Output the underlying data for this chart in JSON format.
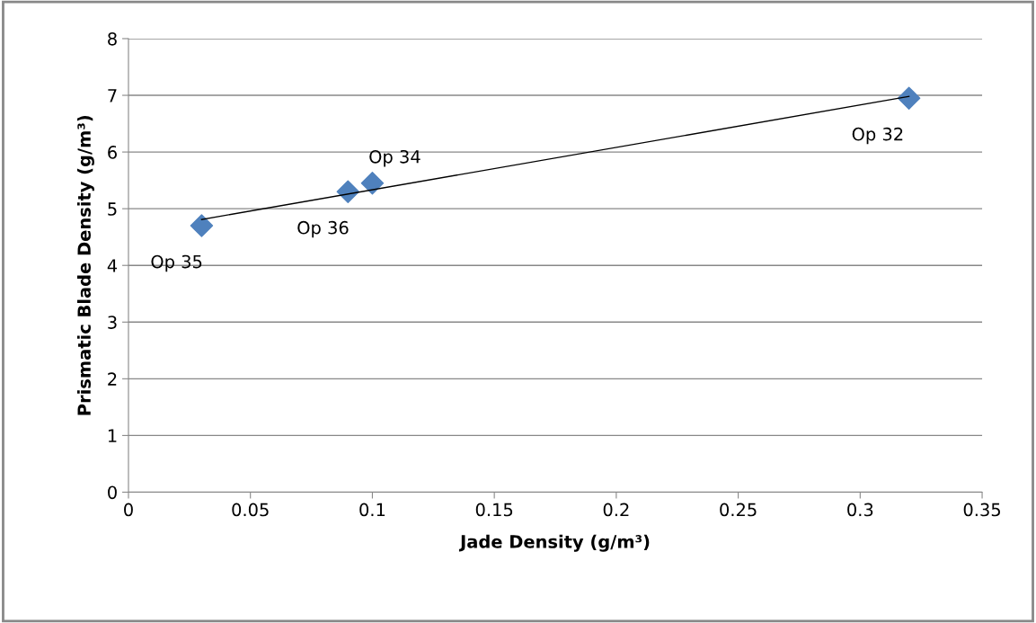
{
  "chart_data": {
    "type": "scatter",
    "xlabel": "Jade Density (g/m³)",
    "ylabel": "Prismatic Blade Density (g/m³)",
    "xlim": [
      0,
      0.35
    ],
    "xticks": [
      0,
      0.05,
      0.1,
      0.15,
      0.2,
      0.25,
      0.3,
      0.35
    ],
    "ylim": [
      0,
      8
    ],
    "yticks": [
      0,
      1,
      2,
      3,
      4,
      5,
      6,
      7,
      8
    ],
    "grid": "y",
    "legend": false,
    "series": [
      {
        "x": [
          0.03,
          0.09,
          0.1,
          0.32
        ],
        "values": [
          4.7,
          5.3,
          5.45,
          6.95
        ],
        "color": "#4f81bd",
        "marker": "diamond"
      },
      {
        "type": "line",
        "x": [
          0.03,
          0.32
        ],
        "values": [
          4.81,
          6.98
        ],
        "color": "#000000",
        "marker": "none",
        "line_style": "solid"
      }
    ],
    "annotations": [
      {
        "text": "Op 35",
        "x": 0.03,
        "y": 4.7
      },
      {
        "text": "Op 36",
        "x": 0.09,
        "y": 5.3
      },
      {
        "text": "Op 34",
        "x": 0.1,
        "y": 5.45
      },
      {
        "text": "Op 32",
        "x": 0.32,
        "y": 6.95
      }
    ]
  }
}
